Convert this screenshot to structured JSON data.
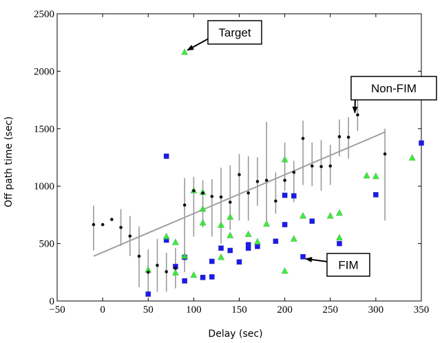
{
  "chart_data": {
    "type": "scatter",
    "xlabel": "Delay (sec)",
    "ylabel": "Off path time (sec)",
    "xlim": [
      -50,
      350
    ],
    "ylim": [
      0,
      2500
    ],
    "xticks": [
      -50,
      0,
      50,
      100,
      150,
      200,
      250,
      300,
      350
    ],
    "xtick_labels": [
      "−50",
      "0",
      "50",
      "100",
      "150",
      "200",
      "250",
      "300",
      "350"
    ],
    "yticks": [
      0,
      500,
      1000,
      1500,
      2000,
      2500
    ],
    "ytick_labels": [
      "0",
      "500",
      "1000",
      "1500",
      "2000",
      "2500"
    ],
    "grid": false,
    "series": [
      {
        "name": "Non-FIM",
        "marker": "dot",
        "color": "#111111",
        "points": [
          {
            "x": -10,
            "y": 665,
            "lo": 440,
            "hi": 830
          },
          {
            "x": 0,
            "y": 665
          },
          {
            "x": 10,
            "y": 710
          },
          {
            "x": 20,
            "y": 640,
            "lo": 480,
            "hi": 800
          },
          {
            "x": 30,
            "y": 565,
            "lo": 390,
            "hi": 740
          },
          {
            "x": 40,
            "y": 390,
            "lo": 120,
            "hi": 650
          },
          {
            "x": 50,
            "y": 250,
            "lo": 40,
            "hi": 450
          },
          {
            "x": 60,
            "y": 310,
            "lo": 80,
            "hi": 540
          },
          {
            "x": 70,
            "y": 255,
            "lo": 80,
            "hi": 420
          },
          {
            "x": 80,
            "y": 285,
            "lo": 110,
            "hi": 460
          },
          {
            "x": 90,
            "y": 835,
            "lo": 250,
            "hi": 1070
          },
          {
            "x": 100,
            "y": 960,
            "lo": 560,
            "hi": 1080
          },
          {
            "x": 110,
            "y": 940,
            "lo": 640,
            "hi": 1050
          },
          {
            "x": 120,
            "y": 910,
            "lo": 560,
            "hi": 1060
          },
          {
            "x": 130,
            "y": 905,
            "lo": 500,
            "hi": 1160
          },
          {
            "x": 140,
            "y": 860,
            "lo": 620,
            "hi": 1180
          },
          {
            "x": 150,
            "y": 1100,
            "lo": 700,
            "hi": 1280
          },
          {
            "x": 160,
            "y": 940,
            "lo": 700,
            "hi": 1260
          },
          {
            "x": 170,
            "y": 1040,
            "lo": 830,
            "hi": 1250
          },
          {
            "x": 180,
            "y": 1050,
            "lo": 690,
            "hi": 1560
          },
          {
            "x": 190,
            "y": 870,
            "lo": 760,
            "hi": 1120
          },
          {
            "x": 200,
            "y": 1050,
            "lo": 960,
            "hi": 1380
          },
          {
            "x": 210,
            "y": 1120,
            "lo": 860,
            "hi": 1220
          },
          {
            "x": 220,
            "y": 1415,
            "lo": 1010,
            "hi": 1570
          },
          {
            "x": 230,
            "y": 1175,
            "lo": 1000,
            "hi": 1380
          },
          {
            "x": 240,
            "y": 1170,
            "lo": 960,
            "hi": 1400
          },
          {
            "x": 250,
            "y": 1175,
            "lo": 1010,
            "hi": 1360
          },
          {
            "x": 260,
            "y": 1430,
            "lo": 1260,
            "hi": 1580
          },
          {
            "x": 270,
            "y": 1425,
            "lo": 1240,
            "hi": 1600
          },
          {
            "x": 280,
            "y": 1620,
            "lo": 1480,
            "hi": 1820
          },
          {
            "x": 310,
            "y": 1280,
            "lo": 700,
            "hi": 1500
          }
        ]
      },
      {
        "name": "FIM",
        "marker": "square",
        "color": "#1a1aee",
        "points": [
          {
            "x": 50,
            "y": 60
          },
          {
            "x": 70,
            "y": 530
          },
          {
            "x": 70,
            "y": 1260
          },
          {
            "x": 80,
            "y": 300
          },
          {
            "x": 90,
            "y": 175
          },
          {
            "x": 90,
            "y": 380
          },
          {
            "x": 110,
            "y": 205
          },
          {
            "x": 120,
            "y": 210
          },
          {
            "x": 120,
            "y": 345
          },
          {
            "x": 130,
            "y": 460
          },
          {
            "x": 140,
            "y": 440
          },
          {
            "x": 150,
            "y": 340
          },
          {
            "x": 160,
            "y": 490
          },
          {
            "x": 160,
            "y": 460
          },
          {
            "x": 170,
            "y": 475
          },
          {
            "x": 190,
            "y": 520
          },
          {
            "x": 200,
            "y": 665
          },
          {
            "x": 200,
            "y": 920
          },
          {
            "x": 210,
            "y": 915
          },
          {
            "x": 220,
            "y": 385
          },
          {
            "x": 230,
            "y": 695
          },
          {
            "x": 260,
            "y": 500
          },
          {
            "x": 300,
            "y": 925
          },
          {
            "x": 350,
            "y": 1375
          }
        ]
      },
      {
        "name": "Target",
        "marker": "triangle",
        "color": "#22ee22",
        "points": [
          {
            "x": 50,
            "y": 270
          },
          {
            "x": 70,
            "y": 560
          },
          {
            "x": 80,
            "y": 510
          },
          {
            "x": 80,
            "y": 245
          },
          {
            "x": 90,
            "y": 2165
          },
          {
            "x": 90,
            "y": 390
          },
          {
            "x": 100,
            "y": 960
          },
          {
            "x": 100,
            "y": 225
          },
          {
            "x": 110,
            "y": 945
          },
          {
            "x": 110,
            "y": 800
          },
          {
            "x": 110,
            "y": 680
          },
          {
            "x": 130,
            "y": 660
          },
          {
            "x": 130,
            "y": 380
          },
          {
            "x": 140,
            "y": 730
          },
          {
            "x": 140,
            "y": 570
          },
          {
            "x": 160,
            "y": 580
          },
          {
            "x": 170,
            "y": 515
          },
          {
            "x": 180,
            "y": 670
          },
          {
            "x": 200,
            "y": 1230
          },
          {
            "x": 200,
            "y": 260
          },
          {
            "x": 210,
            "y": 540
          },
          {
            "x": 220,
            "y": 740
          },
          {
            "x": 250,
            "y": 740
          },
          {
            "x": 260,
            "y": 765
          },
          {
            "x": 260,
            "y": 550
          },
          {
            "x": 290,
            "y": 1090
          },
          {
            "x": 300,
            "y": 1085
          },
          {
            "x": 340,
            "y": 1245
          }
        ]
      }
    ],
    "trend_line": {
      "color": "#a0a0a0",
      "x": [
        -10,
        310
      ],
      "y": [
        390,
        1470
      ]
    },
    "annotations": [
      {
        "text": "Target",
        "point": {
          "x": 90,
          "y": 2165
        }
      },
      {
        "text": "Non-FIM",
        "point": {
          "x": 280,
          "y": 1620
        }
      },
      {
        "text": "FIM",
        "point": {
          "x": 220,
          "y": 385
        }
      }
    ]
  }
}
